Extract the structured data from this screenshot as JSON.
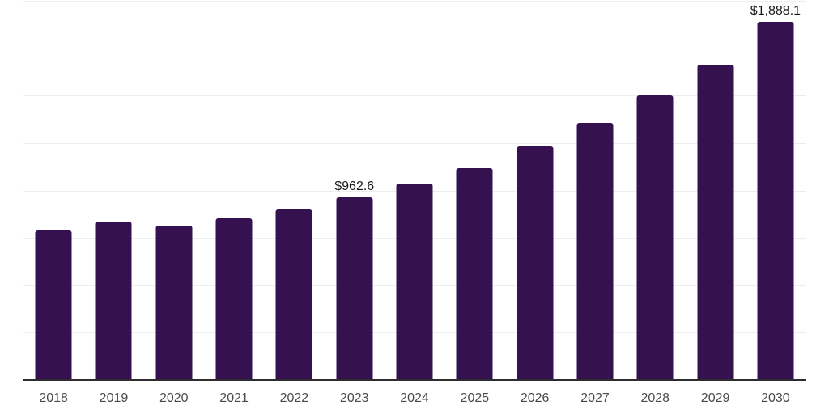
{
  "chart_data": {
    "type": "bar",
    "title": "",
    "xlabel": "",
    "ylabel": "",
    "categories": [
      "2018",
      "2019",
      "2020",
      "2021",
      "2022",
      "2023",
      "2024",
      "2025",
      "2026",
      "2027",
      "2028",
      "2029",
      "2030"
    ],
    "values": [
      790,
      835,
      814,
      852,
      899,
      962.6,
      1037,
      1119,
      1234,
      1358,
      1500,
      1665,
      1888.1
    ],
    "value_labels": [
      {
        "category": "2023",
        "text": "$962.6"
      },
      {
        "category": "2030",
        "text": "$1,888.1"
      }
    ],
    "ylim": [
      0,
      2000
    ],
    "gridline_interval": 250,
    "grid": true,
    "legend": "none",
    "y_tick_labels_visible": false,
    "colors": {
      "bar": "#361150",
      "axis_line": "#2d2d2d",
      "gridline": "#ededed",
      "x_tick_label": "#4a4a4a",
      "value_label": "#1a1a1a",
      "background": "#ffffff"
    }
  }
}
